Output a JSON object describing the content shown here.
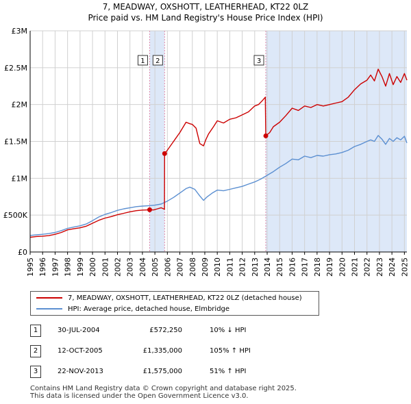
{
  "header": {
    "title_line1": "7, MEADWAY, OXSHOTT, LEATHERHEAD, KT22 0LZ",
    "title_line2": "Price paid vs. HM Land Registry's House Price Index (HPI)"
  },
  "colors": {
    "price_paid": "#cc0000",
    "hpi": "#5b8fd1",
    "shade": "#dde8f8",
    "marker_line": "#e08aaa",
    "grid": "#d0d0d0"
  },
  "chart_data": {
    "type": "line",
    "title": "Price paid vs. HM Land Registry's House Price Index (HPI)",
    "xlabel": "",
    "ylabel": "",
    "xlim": [
      1995,
      2025.2
    ],
    "ylim": [
      0,
      3000000
    ],
    "y_ticks": [
      {
        "value": 0,
        "label": "£0"
      },
      {
        "value": 500000,
        "label": "£500K"
      },
      {
        "value": 1000000,
        "label": "£1M"
      },
      {
        "value": 1500000,
        "label": "£1.5M"
      },
      {
        "value": 2000000,
        "label": "£2M"
      },
      {
        "value": 2500000,
        "label": "£2.5M"
      },
      {
        "value": 3000000,
        "label": "£3M"
      }
    ],
    "x_ticks": [
      "1995",
      "1996",
      "1997",
      "1998",
      "1999",
      "2000",
      "2001",
      "2002",
      "2003",
      "2004",
      "2005",
      "2006",
      "2007",
      "2008",
      "2009",
      "2010",
      "2011",
      "2012",
      "2013",
      "2014",
      "2015",
      "2016",
      "2017",
      "2018",
      "2019",
      "2020",
      "2021",
      "2022",
      "2023",
      "2024",
      "2025"
    ],
    "shaded_regions": [
      [
        2004.58,
        2005.78
      ],
      [
        2013.89,
        2025.2
      ]
    ],
    "series": [
      {
        "name": "7, MEADWAY, OXSHOTT, LEATHERHEAD, KT22 0LZ (detached house)",
        "color": "#cc0000",
        "x": [
          1995.0,
          1995.5,
          1996.0,
          1996.5,
          1997.0,
          1997.5,
          1998.0,
          1998.5,
          1999.0,
          1999.5,
          2000.0,
          2000.5,
          2001.0,
          2001.5,
          2002.0,
          2002.5,
          2003.0,
          2003.5,
          2004.0,
          2004.58,
          2004.9,
          2005.2,
          2005.5,
          2005.77,
          2005.78,
          2006.0,
          2006.5,
          2007.0,
          2007.5,
          2007.8,
          2008.0,
          2008.3,
          2008.6,
          2008.9,
          2009.1,
          2009.3,
          2009.7,
          2010.0,
          2010.5,
          2011.0,
          2011.5,
          2012.0,
          2012.5,
          2013.0,
          2013.3,
          2013.6,
          2013.85,
          2013.89,
          2014.2,
          2014.5,
          2015.0,
          2015.5,
          2016.0,
          2016.5,
          2017.0,
          2017.5,
          2018.0,
          2018.5,
          2019.0,
          2019.5,
          2020.0,
          2020.5,
          2021.0,
          2021.5,
          2022.0,
          2022.3,
          2022.6,
          2022.9,
          2023.2,
          2023.5,
          2023.8,
          2024.1,
          2024.4,
          2024.7,
          2025.0,
          2025.2
        ],
        "y": [
          200000,
          210000,
          215000,
          222000,
          240000,
          265000,
          300000,
          315000,
          328000,
          350000,
          390000,
          430000,
          460000,
          480000,
          505000,
          525000,
          545000,
          560000,
          568000,
          572250,
          570000,
          585000,
          600000,
          580000,
          1335000,
          1380000,
          1500000,
          1620000,
          1760000,
          1740000,
          1730000,
          1680000,
          1470000,
          1440000,
          1530000,
          1600000,
          1700000,
          1780000,
          1750000,
          1800000,
          1820000,
          1860000,
          1900000,
          1980000,
          2000000,
          2050000,
          2100000,
          1575000,
          1620000,
          1700000,
          1760000,
          1850000,
          1950000,
          1920000,
          1980000,
          1960000,
          2000000,
          1980000,
          2000000,
          2020000,
          2040000,
          2100000,
          2200000,
          2280000,
          2330000,
          2400000,
          2320000,
          2480000,
          2380000,
          2250000,
          2420000,
          2270000,
          2380000,
          2300000,
          2420000,
          2330000
        ]
      },
      {
        "name": "HPI: Average price, detached house, Elmbridge",
        "color": "#5b8fd1",
        "x": [
          1995.0,
          1995.5,
          1996.0,
          1996.5,
          1997.0,
          1997.5,
          1998.0,
          1998.5,
          1999.0,
          1999.5,
          2000.0,
          2000.5,
          2001.0,
          2001.5,
          2002.0,
          2002.5,
          2003.0,
          2003.5,
          2004.0,
          2004.5,
          2005.0,
          2005.5,
          2006.0,
          2006.5,
          2007.0,
          2007.5,
          2007.8,
          2008.2,
          2008.6,
          2008.9,
          2009.2,
          2009.6,
          2010.0,
          2010.5,
          2011.0,
          2011.5,
          2012.0,
          2012.5,
          2013.0,
          2013.5,
          2014.0,
          2014.5,
          2015.0,
          2015.5,
          2016.0,
          2016.5,
          2017.0,
          2017.5,
          2018.0,
          2018.5,
          2019.0,
          2019.5,
          2020.0,
          2020.5,
          2021.0,
          2021.5,
          2022.0,
          2022.3,
          2022.6,
          2022.9,
          2023.2,
          2023.5,
          2023.8,
          2024.1,
          2024.4,
          2024.7,
          2025.0,
          2025.2
        ],
        "y": [
          225000,
          232000,
          240000,
          250000,
          265000,
          290000,
          320000,
          338000,
          355000,
          380000,
          425000,
          475000,
          510000,
          535000,
          565000,
          585000,
          600000,
          615000,
          622000,
          628000,
          635000,
          650000,
          690000,
          740000,
          800000,
          860000,
          880000,
          850000,
          760000,
          700000,
          750000,
          800000,
          840000,
          830000,
          850000,
          870000,
          890000,
          920000,
          950000,
          990000,
          1040000,
          1090000,
          1150000,
          1200000,
          1260000,
          1250000,
          1300000,
          1280000,
          1310000,
          1300000,
          1320000,
          1330000,
          1350000,
          1380000,
          1430000,
          1460000,
          1500000,
          1520000,
          1500000,
          1580000,
          1530000,
          1460000,
          1540000,
          1500000,
          1550000,
          1520000,
          1570000,
          1480000
        ]
      }
    ],
    "sales": [
      {
        "num": "1",
        "x": 2004.58,
        "price": 572250
      },
      {
        "num": "2",
        "x": 2005.78,
        "price": 1335000
      },
      {
        "num": "3",
        "x": 2013.89,
        "price": 1575000
      }
    ]
  },
  "legend": {
    "price_label": "7, MEADWAY, OXSHOTT, LEATHERHEAD, KT22 0LZ (detached house)",
    "hpi_label": "HPI: Average price, detached house, Elmbridge"
  },
  "transactions": [
    {
      "num": "1",
      "date": "30-JUL-2004",
      "price": "£572,250",
      "hpi": "10% ↓ HPI"
    },
    {
      "num": "2",
      "date": "12-OCT-2005",
      "price": "£1,335,000",
      "hpi": "105% ↑ HPI"
    },
    {
      "num": "3",
      "date": "22-NOV-2013",
      "price": "£1,575,000",
      "hpi": "51% ↑ HPI"
    }
  ],
  "footer": {
    "line1": "Contains HM Land Registry data © Crown copyright and database right 2025.",
    "line2": "This data is licensed under the Open Government Licence v3.0."
  }
}
